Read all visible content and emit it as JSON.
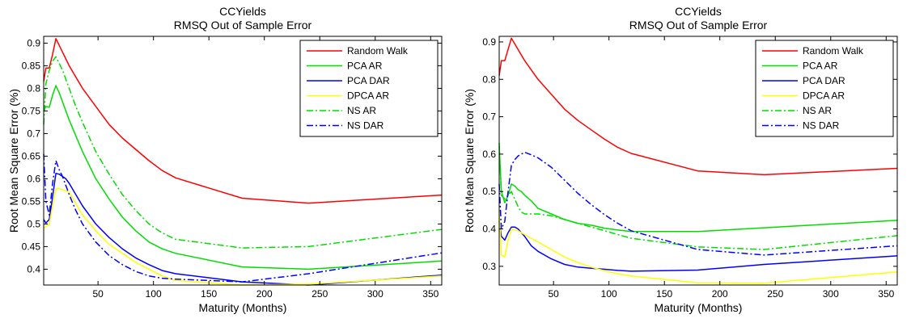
{
  "chart_data": [
    {
      "type": "line",
      "title": "CCYields",
      "subtitle": "RMSQ Out of Sample Error",
      "xlabel": "Maturity (Months)",
      "ylabel": "Root Mean Square Error (%)",
      "xlim": [
        1,
        360
      ],
      "ylim": [
        0.365,
        0.915
      ],
      "xticks": [
        50,
        100,
        150,
        200,
        250,
        300,
        350
      ],
      "yticks": [
        0.4,
        0.45,
        0.5,
        0.55,
        0.6,
        0.65,
        0.7,
        0.75,
        0.8,
        0.85,
        0.9
      ],
      "legend_position": "top-right",
      "series": [
        {
          "name": "Random Walk",
          "color": "#ff0000",
          "dash": "solid",
          "x": [
            1,
            3,
            6,
            9,
            12,
            15,
            18,
            21,
            24,
            30,
            36,
            48,
            60,
            72,
            84,
            96,
            108,
            120,
            180,
            240,
            360
          ],
          "y": [
            0.815,
            0.845,
            0.845,
            0.875,
            0.91,
            0.895,
            0.88,
            0.865,
            0.85,
            0.825,
            0.8,
            0.76,
            0.72,
            0.69,
            0.665,
            0.64,
            0.618,
            0.602,
            0.557,
            0.546,
            0.564
          ]
        },
        {
          "name": "PCA AR",
          "color": "#00dd00",
          "dash": "solid",
          "x": [
            1,
            3,
            6,
            9,
            12,
            15,
            18,
            21,
            24,
            30,
            36,
            48,
            60,
            72,
            84,
            96,
            108,
            120,
            180,
            240,
            360
          ],
          "y": [
            0.75,
            0.76,
            0.758,
            0.785,
            0.806,
            0.79,
            0.77,
            0.75,
            0.73,
            0.695,
            0.66,
            0.6,
            0.555,
            0.515,
            0.485,
            0.46,
            0.445,
            0.435,
            0.405,
            0.4,
            0.418
          ]
        },
        {
          "name": "PCA DAR",
          "color": "#0000ff",
          "dash": "solid",
          "x": [
            1,
            3,
            6,
            9,
            12,
            15,
            18,
            21,
            24,
            30,
            36,
            48,
            60,
            72,
            84,
            96,
            108,
            120,
            180,
            240,
            360
          ],
          "y": [
            0.51,
            0.502,
            0.51,
            0.56,
            0.612,
            0.61,
            0.605,
            0.6,
            0.59,
            0.565,
            0.54,
            0.5,
            0.47,
            0.445,
            0.425,
            0.41,
            0.397,
            0.39,
            0.372,
            0.365,
            0.387
          ]
        },
        {
          "name": "DPCA AR",
          "color": "#ffff00",
          "dash": "solid",
          "x": [
            1,
            3,
            6,
            9,
            12,
            15,
            18,
            21,
            24,
            30,
            36,
            48,
            60,
            72,
            84,
            96,
            108,
            120,
            180,
            240,
            360
          ],
          "y": [
            0.49,
            0.495,
            0.5,
            0.54,
            0.578,
            0.578,
            0.576,
            0.573,
            0.57,
            0.545,
            0.52,
            0.485,
            0.455,
            0.435,
            0.415,
            0.4,
            0.385,
            0.375,
            0.365,
            0.367,
            0.385
          ]
        },
        {
          "name": "NS AR",
          "color": "#00dd00",
          "dash": "dashdot",
          "x": [
            1,
            3,
            6,
            9,
            12,
            15,
            18,
            21,
            24,
            30,
            36,
            48,
            60,
            72,
            84,
            96,
            108,
            120,
            180,
            240,
            360
          ],
          "y": [
            0.72,
            0.81,
            0.84,
            0.86,
            0.87,
            0.855,
            0.84,
            0.82,
            0.8,
            0.76,
            0.725,
            0.66,
            0.61,
            0.565,
            0.53,
            0.5,
            0.48,
            0.466,
            0.447,
            0.45,
            0.488
          ]
        },
        {
          "name": "NS DAR",
          "color": "#0000ff",
          "dash": "dashdot",
          "x": [
            1,
            3,
            6,
            9,
            12,
            15,
            18,
            21,
            24,
            30,
            36,
            48,
            60,
            72,
            84,
            96,
            108,
            120,
            180,
            240,
            360
          ],
          "y": [
            0.655,
            0.55,
            0.52,
            0.59,
            0.64,
            0.62,
            0.605,
            0.585,
            0.565,
            0.53,
            0.5,
            0.46,
            0.43,
            0.41,
            0.395,
            0.385,
            0.38,
            0.378,
            0.372,
            0.39,
            0.436
          ]
        }
      ]
    },
    {
      "type": "line",
      "title": "CCYields",
      "subtitle": "RMSQ Out of Sample Error",
      "xlabel": "Maturity (Months)",
      "ylabel": "Root Mean Square Error (%)",
      "xlim": [
        1,
        360
      ],
      "ylim": [
        0.25,
        0.915
      ],
      "xticks": [
        50,
        100,
        150,
        200,
        250,
        300,
        350
      ],
      "yticks": [
        0.3,
        0.4,
        0.5,
        0.6,
        0.7,
        0.8,
        0.9
      ],
      "legend_position": "top-right",
      "series": [
        {
          "name": "Random Walk",
          "color": "#ff0000",
          "dash": "solid",
          "x": [
            1,
            3,
            6,
            9,
            12,
            15,
            18,
            21,
            24,
            30,
            36,
            48,
            60,
            72,
            84,
            96,
            108,
            120,
            180,
            240,
            360
          ],
          "y": [
            0.81,
            0.85,
            0.85,
            0.88,
            0.91,
            0.895,
            0.88,
            0.865,
            0.85,
            0.825,
            0.8,
            0.76,
            0.72,
            0.69,
            0.665,
            0.64,
            0.618,
            0.602,
            0.555,
            0.545,
            0.562
          ]
        },
        {
          "name": "PCA AR",
          "color": "#00dd00",
          "dash": "solid",
          "x": [
            1,
            3,
            6,
            9,
            12,
            15,
            18,
            21,
            24,
            30,
            36,
            48,
            60,
            72,
            84,
            96,
            108,
            120,
            180,
            240,
            360
          ],
          "y": [
            0.62,
            0.5,
            0.47,
            0.49,
            0.52,
            0.515,
            0.505,
            0.5,
            0.49,
            0.475,
            0.455,
            0.44,
            0.425,
            0.415,
            0.41,
            0.402,
            0.397,
            0.393,
            0.393,
            0.403,
            0.423
          ]
        },
        {
          "name": "PCA DAR",
          "color": "#0000ff",
          "dash": "solid",
          "x": [
            1,
            3,
            6,
            9,
            12,
            15,
            18,
            21,
            24,
            30,
            36,
            48,
            60,
            72,
            84,
            96,
            108,
            120,
            180,
            240,
            360
          ],
          "y": [
            0.42,
            0.38,
            0.37,
            0.39,
            0.405,
            0.405,
            0.4,
            0.39,
            0.38,
            0.355,
            0.34,
            0.32,
            0.305,
            0.298,
            0.295,
            0.292,
            0.289,
            0.287,
            0.29,
            0.305,
            0.328
          ]
        },
        {
          "name": "DPCA AR",
          "color": "#ffff00",
          "dash": "solid",
          "x": [
            1,
            3,
            6,
            9,
            12,
            15,
            18,
            21,
            24,
            30,
            36,
            48,
            60,
            72,
            84,
            96,
            108,
            120,
            180,
            240,
            360
          ],
          "y": [
            0.45,
            0.33,
            0.325,
            0.37,
            0.4,
            0.398,
            0.395,
            0.39,
            0.385,
            0.375,
            0.365,
            0.345,
            0.325,
            0.31,
            0.298,
            0.288,
            0.28,
            0.274,
            0.256,
            0.255,
            0.285
          ]
        },
        {
          "name": "NS AR",
          "color": "#00dd00",
          "dash": "dashdot",
          "x": [
            1,
            3,
            6,
            9,
            12,
            15,
            18,
            21,
            24,
            30,
            36,
            48,
            60,
            72,
            84,
            96,
            108,
            120,
            180,
            240,
            360
          ],
          "y": [
            0.63,
            0.49,
            0.48,
            0.49,
            0.5,
            0.48,
            0.46,
            0.445,
            0.44,
            0.44,
            0.44,
            0.435,
            0.425,
            0.415,
            0.405,
            0.395,
            0.385,
            0.375,
            0.352,
            0.345,
            0.382
          ]
        },
        {
          "name": "NS DAR",
          "color": "#0000ff",
          "dash": "dashdot",
          "x": [
            1,
            3,
            6,
            9,
            12,
            15,
            18,
            21,
            24,
            30,
            36,
            48,
            60,
            72,
            84,
            96,
            108,
            120,
            180,
            240,
            360
          ],
          "y": [
            0.52,
            0.4,
            0.42,
            0.5,
            0.57,
            0.585,
            0.595,
            0.6,
            0.605,
            0.598,
            0.59,
            0.565,
            0.53,
            0.495,
            0.465,
            0.438,
            0.415,
            0.395,
            0.345,
            0.33,
            0.355
          ]
        }
      ]
    }
  ]
}
